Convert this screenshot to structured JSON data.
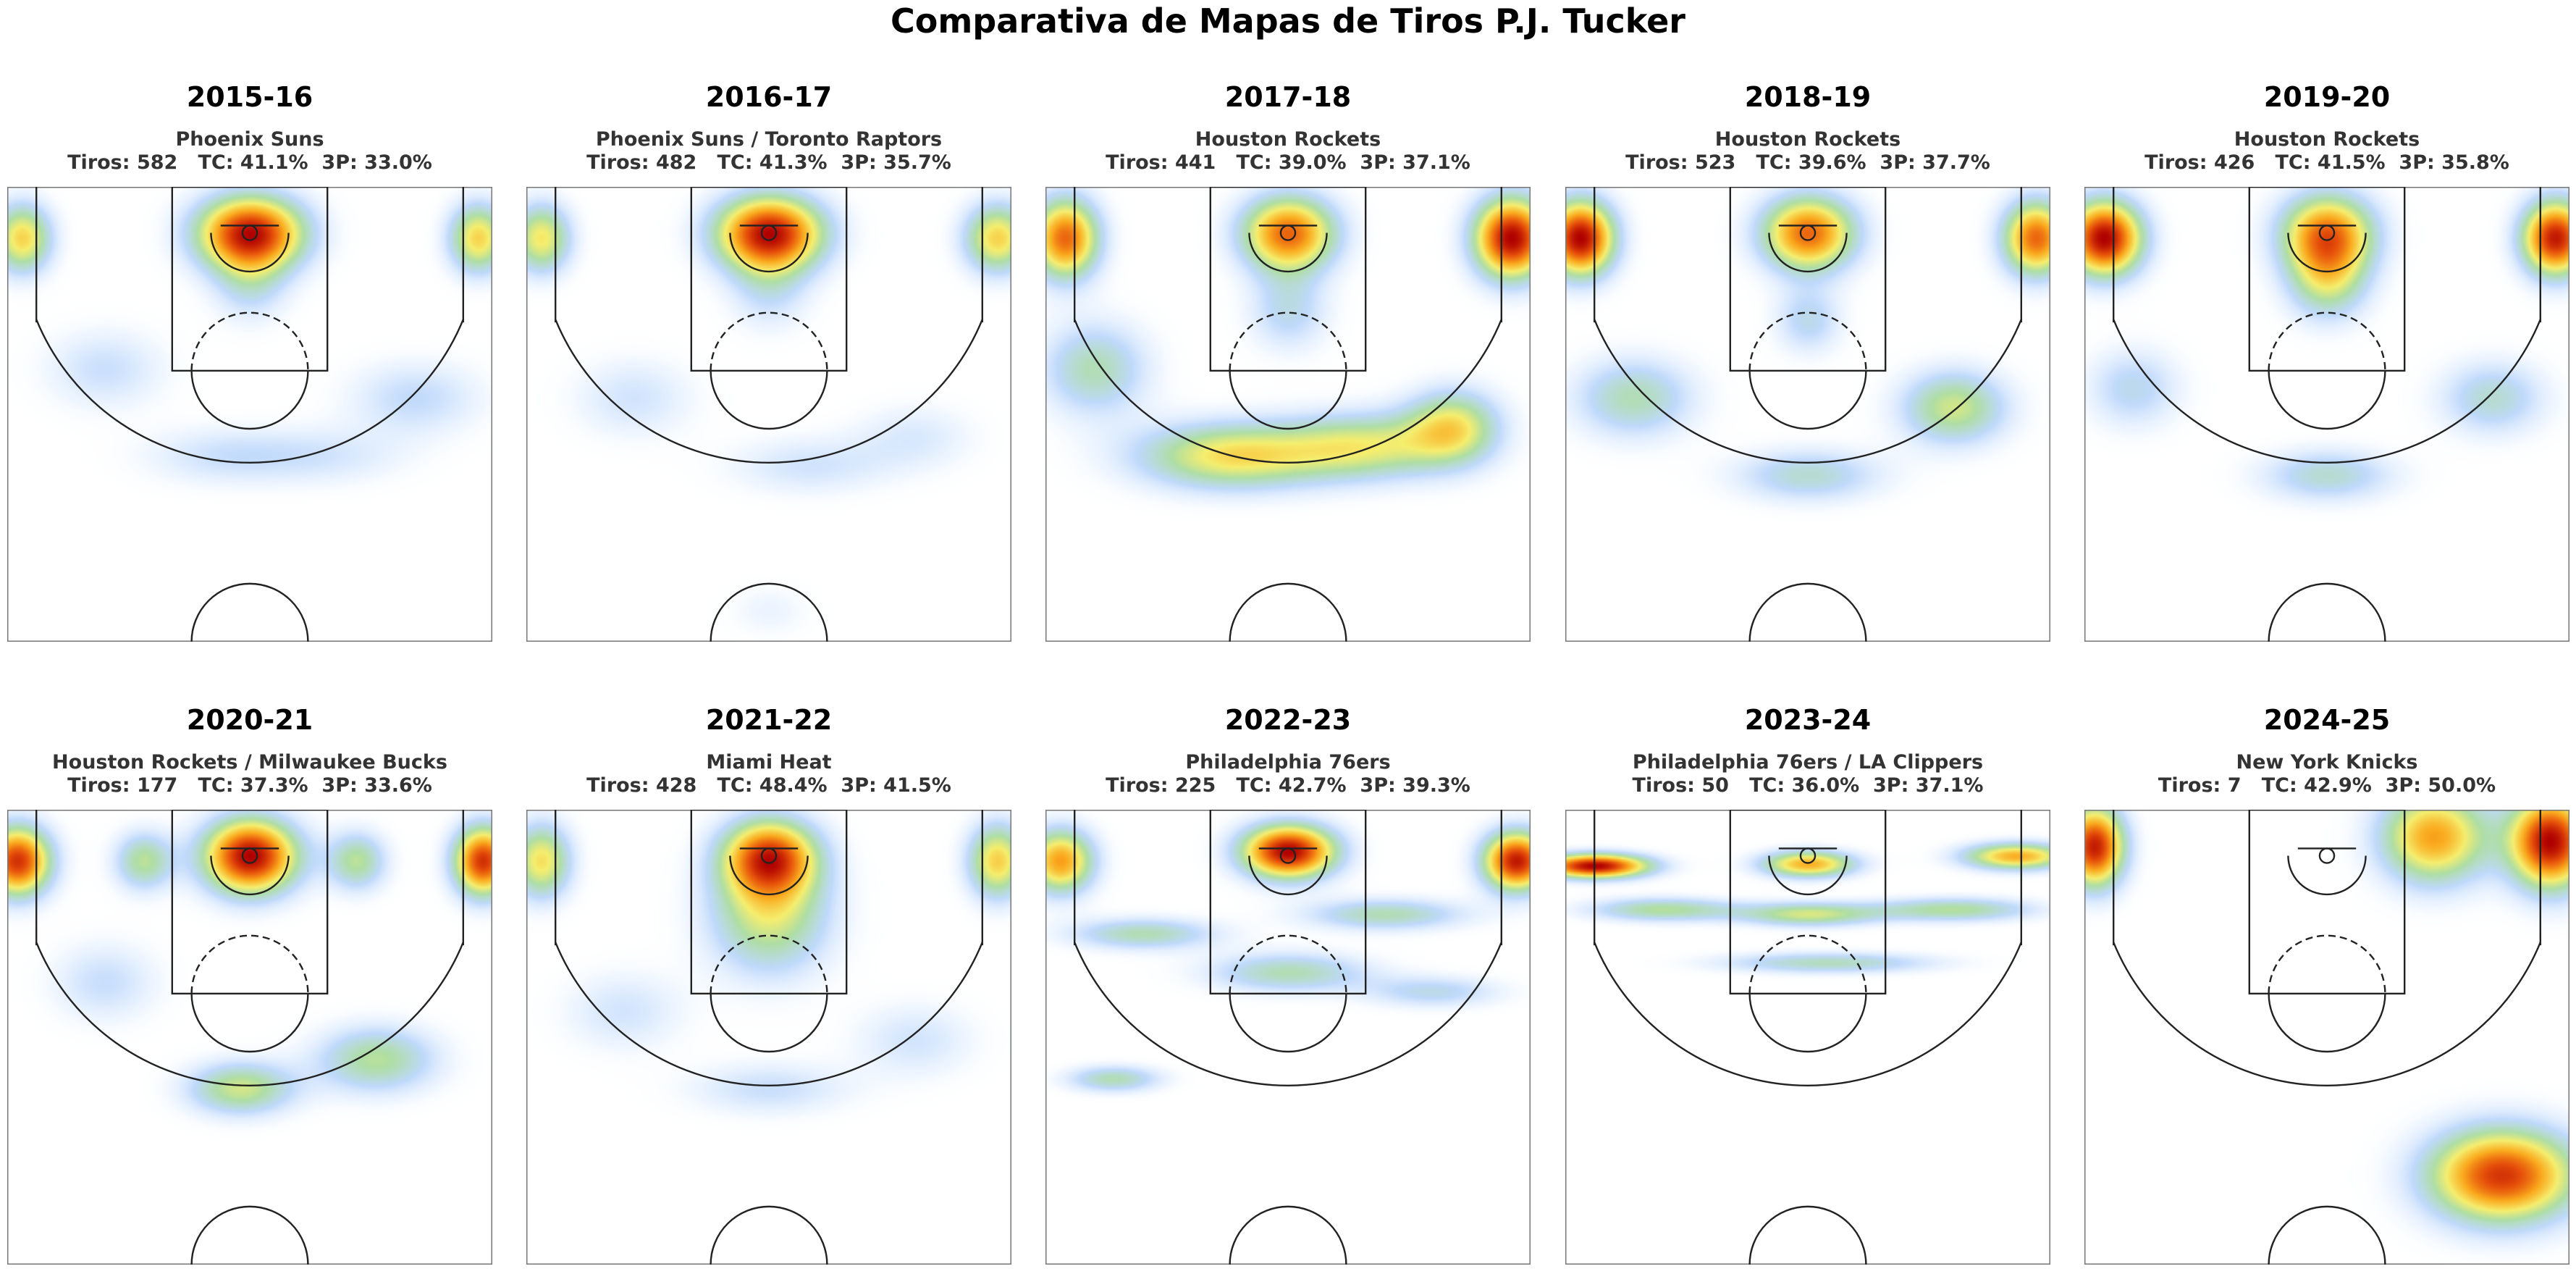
{
  "title": "Comparativa de Mapas de Tiros P.J. Tucker",
  "chart_data": {
    "type": "heatmap",
    "title": "Comparativa de Mapas de Tiros P.J. Tucker",
    "x_range": [
      -250,
      250
    ],
    "y_range": [
      -47.5,
      422.5
    ],
    "grid": false,
    "colormap": "white-blue-green-yellow-orange-red",
    "panels": [
      {
        "season": "2015-16",
        "team": "Phoenix Suns",
        "stats": "Tiros: 582   TC: 41.1%  3P: 33.0%",
        "shots": 582,
        "fg_pct": 41.1,
        "three_pct": 33.0,
        "hotspots": [
          {
            "x": 0,
            "y": 0,
            "sx": 40,
            "sy": 28,
            "w": 1.0
          },
          {
            "x": -235,
            "y": 5,
            "sx": 22,
            "sy": 26,
            "w": 0.6
          },
          {
            "x": 235,
            "y": 5,
            "sx": 22,
            "sy": 26,
            "w": 0.6
          },
          {
            "x": 0,
            "y": 55,
            "sx": 28,
            "sy": 28,
            "w": 0.22
          },
          {
            "x": -150,
            "y": 140,
            "sx": 45,
            "sy": 30,
            "w": 0.2
          },
          {
            "x": 170,
            "y": 170,
            "sx": 50,
            "sy": 28,
            "w": 0.22
          },
          {
            "x": -30,
            "y": 230,
            "sx": 60,
            "sy": 22,
            "w": 0.18
          },
          {
            "x": 80,
            "y": 230,
            "sx": 60,
            "sy": 22,
            "w": 0.15
          }
        ]
      },
      {
        "season": "2016-17",
        "team": "Phoenix Suns / Toronto Raptors",
        "stats": "Tiros: 482   TC: 41.3%  3P: 35.7%",
        "shots": 482,
        "fg_pct": 41.3,
        "three_pct": 35.7,
        "hotspots": [
          {
            "x": 0,
            "y": 0,
            "sx": 40,
            "sy": 28,
            "w": 1.0
          },
          {
            "x": -235,
            "y": 5,
            "sx": 22,
            "sy": 26,
            "w": 0.55
          },
          {
            "x": 235,
            "y": 5,
            "sx": 25,
            "sy": 26,
            "w": 0.6
          },
          {
            "x": 0,
            "y": 60,
            "sx": 30,
            "sy": 30,
            "w": 0.2
          },
          {
            "x": -140,
            "y": 170,
            "sx": 45,
            "sy": 30,
            "w": 0.18
          },
          {
            "x": 40,
            "y": 240,
            "sx": 60,
            "sy": 22,
            "w": 0.18
          },
          {
            "x": 150,
            "y": 210,
            "sx": 45,
            "sy": 25,
            "w": 0.15
          },
          {
            "x": 0,
            "y": 390,
            "sx": 30,
            "sy": 20,
            "w": 0.1
          }
        ]
      },
      {
        "season": "2017-18",
        "team": "Houston Rockets",
        "stats": "Tiros: 441   TC: 39.0%  3P: 37.1%",
        "shots": 441,
        "fg_pct": 39.0,
        "three_pct": 37.1,
        "hotspots": [
          {
            "x": 0,
            "y": 0,
            "sx": 35,
            "sy": 28,
            "w": 0.8
          },
          {
            "x": -230,
            "y": 5,
            "sx": 25,
            "sy": 30,
            "w": 0.8
          },
          {
            "x": 230,
            "y": 5,
            "sx": 28,
            "sy": 30,
            "w": 1.0
          },
          {
            "x": -200,
            "y": 140,
            "sx": 40,
            "sy": 35,
            "w": 0.35
          },
          {
            "x": -60,
            "y": 230,
            "sx": 70,
            "sy": 25,
            "w": 0.55
          },
          {
            "x": 80,
            "y": 220,
            "sx": 60,
            "sy": 25,
            "w": 0.45
          },
          {
            "x": 170,
            "y": 200,
            "sx": 35,
            "sy": 28,
            "w": 0.5
          },
          {
            "x": 0,
            "y": 80,
            "sx": 30,
            "sy": 30,
            "w": 0.25
          }
        ]
      },
      {
        "season": "2018-19",
        "team": "Houston Rockets",
        "stats": "Tiros: 523   TC: 39.6%  3P: 37.7%",
        "shots": 523,
        "fg_pct": 39.6,
        "three_pct": 37.7,
        "hotspots": [
          {
            "x": 0,
            "y": 0,
            "sx": 35,
            "sy": 28,
            "w": 0.8
          },
          {
            "x": -235,
            "y": 5,
            "sx": 25,
            "sy": 28,
            "w": 1.0
          },
          {
            "x": 235,
            "y": 5,
            "sx": 25,
            "sy": 28,
            "w": 0.8
          },
          {
            "x": -180,
            "y": 170,
            "sx": 45,
            "sy": 30,
            "w": 0.35
          },
          {
            "x": 0,
            "y": 250,
            "sx": 55,
            "sy": 20,
            "w": 0.3
          },
          {
            "x": 150,
            "y": 180,
            "sx": 40,
            "sy": 28,
            "w": 0.45
          },
          {
            "x": 0,
            "y": 90,
            "sx": 25,
            "sy": 25,
            "w": 0.25
          }
        ]
      },
      {
        "season": "2019-20",
        "team": "Houston Rockets",
        "stats": "Tiros: 426   TC: 41.5%  3P: 35.8%",
        "shots": 426,
        "fg_pct": 41.5,
        "three_pct": 35.8,
        "hotspots": [
          {
            "x": 0,
            "y": 0,
            "sx": 35,
            "sy": 30,
            "w": 0.75
          },
          {
            "x": -230,
            "y": 5,
            "sx": 28,
            "sy": 28,
            "w": 1.0
          },
          {
            "x": 235,
            "y": 5,
            "sx": 25,
            "sy": 28,
            "w": 0.95
          },
          {
            "x": 0,
            "y": 50,
            "sx": 30,
            "sy": 30,
            "w": 0.4
          },
          {
            "x": -200,
            "y": 160,
            "sx": 35,
            "sy": 30,
            "w": 0.25
          },
          {
            "x": 0,
            "y": 250,
            "sx": 50,
            "sy": 20,
            "w": 0.3
          },
          {
            "x": 170,
            "y": 170,
            "sx": 40,
            "sy": 28,
            "w": 0.3
          }
        ]
      },
      {
        "season": "2020-21",
        "team": "Houston Rockets / Milwaukee Bucks",
        "stats": "Tiros: 177   TC: 37.3%  3P: 33.6%",
        "shots": 177,
        "fg_pct": 37.3,
        "three_pct": 33.6,
        "hotspots": [
          {
            "x": 0,
            "y": 0,
            "sx": 35,
            "sy": 28,
            "w": 1.0
          },
          {
            "x": -240,
            "y": 5,
            "sx": 25,
            "sy": 26,
            "w": 0.9
          },
          {
            "x": 240,
            "y": 5,
            "sx": 22,
            "sy": 26,
            "w": 0.9
          },
          {
            "x": -110,
            "y": 5,
            "sx": 22,
            "sy": 22,
            "w": 0.4
          },
          {
            "x": 110,
            "y": 5,
            "sx": 22,
            "sy": 22,
            "w": 0.4
          },
          {
            "x": -10,
            "y": 240,
            "sx": 40,
            "sy": 20,
            "w": 0.45
          },
          {
            "x": 130,
            "y": 210,
            "sx": 45,
            "sy": 25,
            "w": 0.4
          },
          {
            "x": -150,
            "y": 130,
            "sx": 40,
            "sy": 30,
            "w": 0.2
          }
        ]
      },
      {
        "season": "2021-22",
        "team": "Miami Heat",
        "stats": "Tiros: 428   TC: 48.4%  3P: 41.5%",
        "shots": 428,
        "fg_pct": 48.4,
        "three_pct": 41.5,
        "hotspots": [
          {
            "x": 0,
            "y": 0,
            "sx": 35,
            "sy": 28,
            "w": 1.0
          },
          {
            "x": 0,
            "y": 60,
            "sx": 45,
            "sy": 45,
            "w": 0.6
          },
          {
            "x": -235,
            "y": 5,
            "sx": 22,
            "sy": 28,
            "w": 0.7
          },
          {
            "x": 235,
            "y": 5,
            "sx": 22,
            "sy": 28,
            "w": 0.75
          },
          {
            "x": -150,
            "y": 160,
            "sx": 45,
            "sy": 30,
            "w": 0.22
          },
          {
            "x": 0,
            "y": 240,
            "sx": 60,
            "sy": 20,
            "w": 0.25
          },
          {
            "x": 150,
            "y": 190,
            "sx": 45,
            "sy": 28,
            "w": 0.22
          }
        ]
      },
      {
        "season": "2022-23",
        "team": "Philadelphia 76ers",
        "stats": "Tiros: 225   TC: 42.7%  3P: 39.3%",
        "shots": 225,
        "fg_pct": 42.7,
        "three_pct": 39.3,
        "hotspots": [
          {
            "x": 0,
            "y": -5,
            "sx": 35,
            "sy": 20,
            "w": 1.0
          },
          {
            "x": -235,
            "y": 5,
            "sx": 25,
            "sy": 24,
            "w": 0.7
          },
          {
            "x": 235,
            "y": 5,
            "sx": 25,
            "sy": 22,
            "w": 0.95
          },
          {
            "x": -150,
            "y": 80,
            "sx": 55,
            "sy": 12,
            "w": 0.35
          },
          {
            "x": 100,
            "y": 60,
            "sx": 60,
            "sy": 12,
            "w": 0.35
          },
          {
            "x": 0,
            "y": 120,
            "sx": 60,
            "sy": 15,
            "w": 0.35
          },
          {
            "x": -180,
            "y": 230,
            "sx": 35,
            "sy": 10,
            "w": 0.35
          },
          {
            "x": 150,
            "y": 140,
            "sx": 50,
            "sy": 12,
            "w": 0.25
          }
        ]
      },
      {
        "season": "2023-24",
        "team": "Philadelphia 76ers / LA Clippers",
        "stats": "Tiros: 50   TC: 36.0%  3P: 37.1%",
        "shots": 50,
        "fg_pct": 36.0,
        "three_pct": 37.1,
        "hotspots": [
          {
            "x": -220,
            "y": 10,
            "sx": 40,
            "sy": 9,
            "w": 0.9
          },
          {
            "x": 0,
            "y": 8,
            "sx": 35,
            "sy": 10,
            "w": 0.6
          },
          {
            "x": 215,
            "y": 0,
            "sx": 40,
            "sy": 10,
            "w": 0.6
          },
          {
            "x": -150,
            "y": 55,
            "sx": 55,
            "sy": 9,
            "w": 0.35
          },
          {
            "x": 0,
            "y": 60,
            "sx": 50,
            "sy": 9,
            "w": 0.4
          },
          {
            "x": 150,
            "y": 55,
            "sx": 60,
            "sy": 9,
            "w": 0.35
          },
          {
            "x": 20,
            "y": 110,
            "sx": 80,
            "sy": 8,
            "w": 0.3
          }
        ]
      },
      {
        "season": "2024-25",
        "team": "New York Knicks",
        "stats": "Tiros: 7   TC: 42.9%  3P: 50.0%",
        "shots": 7,
        "fg_pct": 42.9,
        "three_pct": 50.0,
        "hotspots": [
          {
            "x": -240,
            "y": -10,
            "sx": 22,
            "sy": 30,
            "w": 0.95
          },
          {
            "x": 230,
            "y": -15,
            "sx": 30,
            "sy": 35,
            "w": 1.0
          },
          {
            "x": 110,
            "y": -20,
            "sx": 40,
            "sy": 35,
            "w": 0.7
          },
          {
            "x": 180,
            "y": 330,
            "sx": 55,
            "sy": 35,
            "w": 0.9
          }
        ]
      }
    ]
  }
}
